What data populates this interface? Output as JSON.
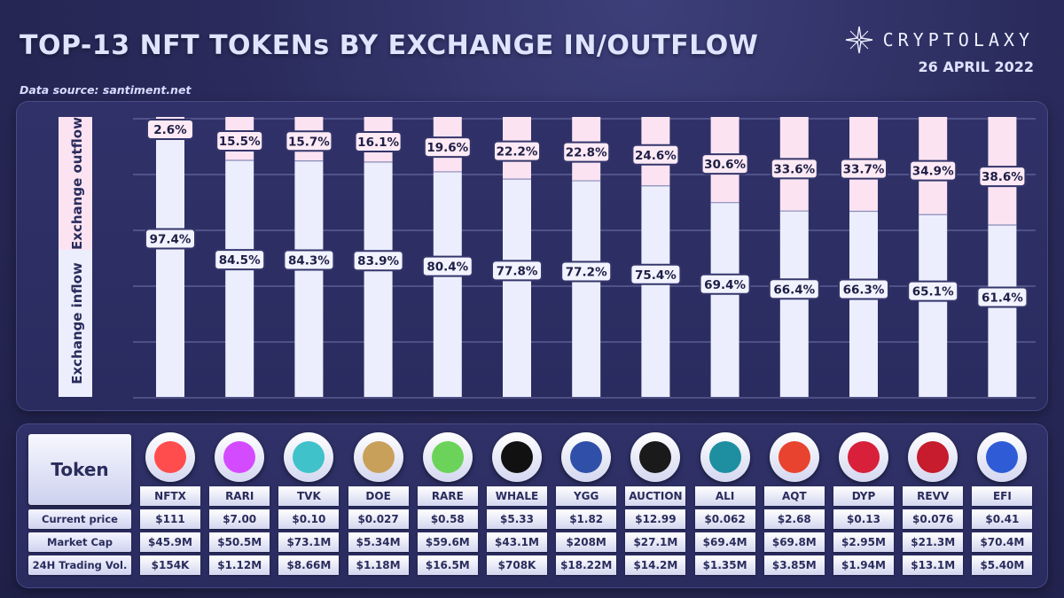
{
  "header": {
    "title": "TOP-13 NFT TOKENs BY EXCHANGE IN/OUTFLOW",
    "source": "Data source: santiment.net",
    "brand": "CRYPTOLAXY",
    "date": "26 APRIL 2022"
  },
  "chart_data": {
    "type": "bar",
    "stacked": true,
    "categories": [
      "NFTX",
      "RARI",
      "TVK",
      "DOE",
      "RARE",
      "WHALE",
      "YGG",
      "AUCTION",
      "ALI",
      "AQT",
      "DYP",
      "REVV",
      "EFI"
    ],
    "series": [
      {
        "name": "Exchange inflow",
        "values": [
          97.4,
          84.5,
          84.3,
          83.9,
          80.4,
          77.8,
          77.2,
          75.4,
          69.4,
          66.4,
          66.3,
          65.1,
          61.4
        ],
        "labels": [
          "97.4%",
          "84.5%",
          "84.3%",
          "83.9%",
          "80.4%",
          "77.8%",
          "77.2%",
          "75.4%",
          "69.4%",
          "66.4%",
          "66.3%",
          "65.1%",
          "61.4%"
        ]
      },
      {
        "name": "Exchange outflow",
        "values": [
          2.6,
          15.5,
          15.7,
          16.1,
          19.6,
          22.2,
          22.8,
          24.6,
          30.6,
          33.6,
          33.7,
          34.9,
          38.6
        ],
        "labels": [
          "2.6%",
          "15.5%",
          "15.7%",
          "16.1%",
          "19.6%",
          "22.2%",
          "22.8%",
          "24.6%",
          "30.6%",
          "33.6%",
          "33.7%",
          "34.9%",
          "38.6%"
        ]
      }
    ],
    "ylim": [
      0,
      100
    ],
    "grid": true,
    "colors": {
      "inflow": "#eceefd",
      "outflow": "#fbe3f2",
      "label_border": "#34366b"
    }
  },
  "table": {
    "token_label": "Token",
    "row_labels": [
      "Current price",
      "Market Cap",
      "24H Trading Vol."
    ],
    "tokens": [
      {
        "symbol": "NFTX",
        "icon": "nftx-logo-icon",
        "color": "#ff4d4d",
        "price": "$111",
        "mcap": "$45.9M",
        "vol": "$154K"
      },
      {
        "symbol": "RARI",
        "icon": "rari-logo-icon",
        "color": "#d44bff",
        "price": "$7.00",
        "mcap": "$50.5M",
        "vol": "$1.12M"
      },
      {
        "symbol": "TVK",
        "icon": "tvk-logo-icon",
        "color": "#3fc2c9",
        "price": "$0.10",
        "mcap": "$73.1M",
        "vol": "$8.66M"
      },
      {
        "symbol": "DOE",
        "icon": "doe-logo-icon",
        "color": "#c9a05a",
        "price": "$0.027",
        "mcap": "$5.34M",
        "vol": "$1.18M"
      },
      {
        "symbol": "RARE",
        "icon": "rare-logo-icon",
        "color": "#6bd35a",
        "price": "$0.58",
        "mcap": "$59.6M",
        "vol": "$16.5M"
      },
      {
        "symbol": "WHALE",
        "icon": "whale-logo-icon",
        "color": "#111111",
        "price": "$5.33",
        "mcap": "$43.1M",
        "vol": "$708K"
      },
      {
        "symbol": "YGG",
        "icon": "ygg-logo-icon",
        "color": "#2f4fa8",
        "price": "$1.82",
        "mcap": "$208M",
        "vol": "$18.22M"
      },
      {
        "symbol": "AUCTION",
        "icon": "auction-logo-icon",
        "color": "#1a1a1a",
        "price": "$12.99",
        "mcap": "$27.1M",
        "vol": "$14.2M"
      },
      {
        "symbol": "ALI",
        "icon": "ali-logo-icon",
        "color": "#1e8fa0",
        "price": "$0.062",
        "mcap": "$69.4M",
        "vol": "$1.35M"
      },
      {
        "symbol": "AQT",
        "icon": "aqt-logo-icon",
        "color": "#e8432e",
        "price": "$2.68",
        "mcap": "$69.8M",
        "vol": "$3.85M"
      },
      {
        "symbol": "DYP",
        "icon": "dyp-logo-icon",
        "color": "#d8203a",
        "price": "$0.13",
        "mcap": "$2.95M",
        "vol": "$1.94M"
      },
      {
        "symbol": "REVV",
        "icon": "revv-logo-icon",
        "color": "#c61c2d",
        "price": "$0.076",
        "mcap": "$21.3M",
        "vol": "$13.1M"
      },
      {
        "symbol": "EFI",
        "icon": "efi-logo-icon",
        "color": "#2f5cd6",
        "price": "$0.41",
        "mcap": "$70.4M",
        "vol": "$5.40M"
      }
    ]
  }
}
